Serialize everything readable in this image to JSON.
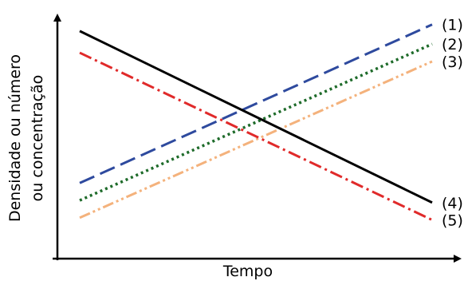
{
  "chart_data": {
    "type": "line",
    "title": "",
    "xlabel": "Tempo",
    "ylabel_lines": [
      "Densidade ou número",
      "ou concentração"
    ],
    "x": [
      0,
      1
    ],
    "ylim": [
      0,
      1
    ],
    "grid": false,
    "legend": "none",
    "series": [
      {
        "name": "(1)",
        "values": [
          0.26,
          0.99
        ],
        "color": "#2e4a9e",
        "style": "dashed"
      },
      {
        "name": "(2)",
        "values": [
          0.18,
          0.9
        ],
        "color": "#1e6b2a",
        "style": "dotted"
      },
      {
        "name": "(3)",
        "values": [
          0.1,
          0.82
        ],
        "color": "#f4b27c",
        "style": "dash-dot-dot"
      },
      {
        "name": "(4)",
        "values": [
          0.96,
          0.17
        ],
        "color": "#000000",
        "style": "solid"
      },
      {
        "name": "(5)",
        "values": [
          0.86,
          0.09
        ],
        "color": "#e02a2a",
        "style": "dash-dot"
      }
    ]
  }
}
